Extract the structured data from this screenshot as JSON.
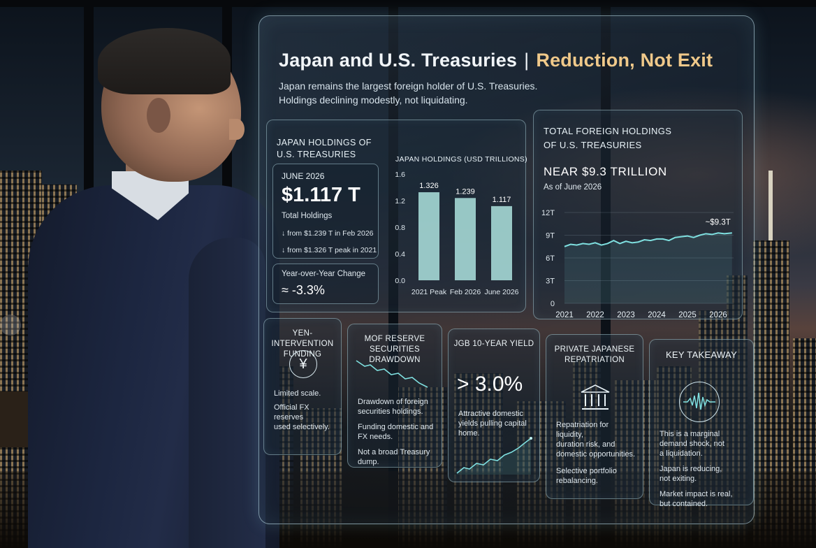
{
  "colors": {
    "accent_gold": "#f0c98a",
    "accent_teal": "#7fe0e0",
    "bar_fill": "#a9ddd9"
  },
  "title": {
    "main": "Japan and U.S. Treasuries",
    "separator": "|",
    "highlight": "Reduction, Not Exit"
  },
  "subtitle": [
    "Japan remains the largest foreign holder of U.S. Treasuries.",
    "Holdings declining modestly, not liquidating."
  ],
  "japan_holdings": {
    "heading": [
      "JAPAN HOLDINGS OF",
      "U.S. TREASURIES"
    ],
    "date": "JUNE 2026",
    "value": "$1.117 T",
    "value_label": "Total Holdings",
    "note1": "↓ from $1.239 T in Feb 2026",
    "note2": "↓ from $1.326 T peak in 2021",
    "yoy_label": "Year-over-Year Change",
    "yoy_value": "≈ -3.3%"
  },
  "total_foreign": {
    "heading": [
      "TOTAL FOREIGN HOLDINGS",
      "OF U.S. TREASURIES"
    ],
    "big": "NEAR $9.3 TRILLION",
    "as_of": "As of June 2026"
  },
  "cards": {
    "yen": {
      "title": [
        "YEN-INTERVENTION",
        "FUNDING"
      ],
      "icon": "yen-icon",
      "lines": [
        "Limited scale.",
        "Official FX reserves",
        "used selectively."
      ]
    },
    "mof": {
      "title": [
        "MOF RESERVE SECURITIES",
        "DRAWDOWN"
      ],
      "icon": "downtrend-icon",
      "p1": [
        "Drawdown of foreign",
        "securities holdings."
      ],
      "p2": [
        "Funding domestic and",
        "FX needs."
      ],
      "p3": [
        "Not a broad Treasury",
        "dump."
      ]
    },
    "jgb": {
      "title": "JGB 10-YEAR YIELD",
      "big": "> 3.0%",
      "p1": [
        "Attractive domestic",
        "yields pulling capital",
        "home."
      ],
      "icon": "uptrend-icon"
    },
    "private": {
      "title": [
        "PRIVATE JAPANESE",
        "REPATRIATION"
      ],
      "icon": "bank-icon",
      "p1": [
        "Repatriation for liquidity,",
        "duration risk, and",
        "domestic opportunities."
      ],
      "p2": [
        "Selective portfolio",
        "rebalancing."
      ]
    },
    "takeaway": {
      "title": "KEY TAKEAWAY",
      "icon": "waveform-icon",
      "p1": [
        "This is a marginal",
        "demand shock, not",
        "a liquidation."
      ],
      "p2": [
        "Japan is reducing,",
        "not exiting."
      ],
      "p3": [
        "Market impact is real,",
        "but contained."
      ]
    }
  },
  "chart_data": [
    {
      "type": "bar",
      "title": "JAPAN HOLDINGS (USD TRILLIONS)",
      "categories": [
        "2021 Peak",
        "Feb 2026",
        "June 2026"
      ],
      "values": [
        1.326,
        1.239,
        1.117
      ],
      "value_labels": [
        "1.326",
        "1.239",
        "1.117"
      ],
      "ylim": [
        0,
        1.6
      ],
      "yticks": [
        0.0,
        0.4,
        0.8,
        1.2,
        1.6
      ],
      "ytick_labels": [
        "0.0",
        "0.4",
        "0.8",
        "1.2",
        "1.6"
      ]
    },
    {
      "type": "line",
      "xticks": [
        "2021",
        "2022",
        "2023",
        "2024",
        "2025",
        "2026"
      ],
      "yticks": [
        0,
        3,
        6,
        9,
        12
      ],
      "ytick_labels": [
        "0",
        "3T",
        "6T",
        "9T",
        "12T"
      ],
      "ylim": [
        0,
        12
      ],
      "xlim": [
        2021,
        2026.5
      ],
      "end_label": "~$9.3T",
      "x": [
        2021.0,
        2021.2,
        2021.4,
        2021.6,
        2021.8,
        2022.0,
        2022.2,
        2022.4,
        2022.6,
        2022.8,
        2023.0,
        2023.2,
        2023.4,
        2023.6,
        2023.8,
        2024.0,
        2024.2,
        2024.4,
        2024.6,
        2024.8,
        2025.0,
        2025.2,
        2025.4,
        2025.6,
        2025.8,
        2026.0,
        2026.2,
        2026.45
      ],
      "y": [
        7.5,
        7.8,
        7.7,
        7.9,
        7.8,
        8.0,
        7.7,
        7.9,
        8.3,
        7.9,
        8.2,
        8.0,
        8.1,
        8.4,
        8.3,
        8.5,
        8.5,
        8.3,
        8.7,
        8.8,
        8.9,
        8.7,
        9.0,
        9.2,
        9.1,
        9.3,
        9.2,
        9.3
      ]
    }
  ]
}
